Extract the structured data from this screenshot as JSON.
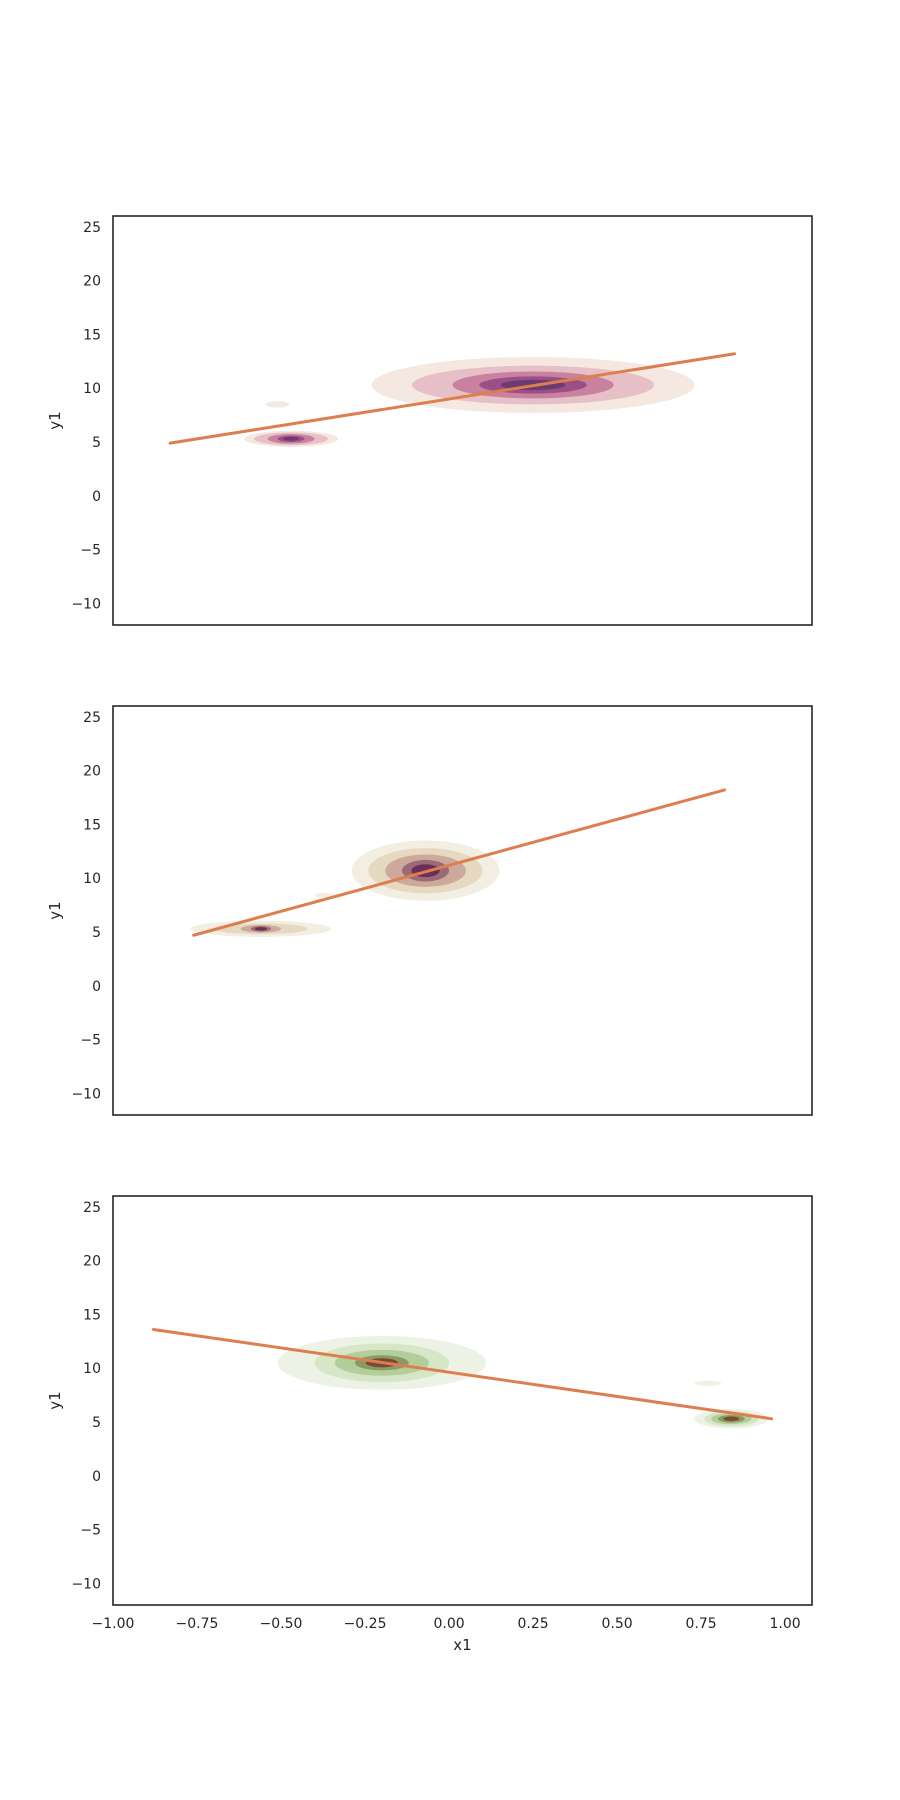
{
  "chart_data": [
    {
      "type": "line",
      "subtype": "kde_contour_with_regression",
      "title": "",
      "xlabel": "",
      "ylabel": "y1",
      "xlim": [
        -1.0,
        1.08
      ],
      "ylim": [
        -12,
        26
      ],
      "x_ticks_visible": false,
      "yticks": [
        25,
        20,
        15,
        10,
        5,
        0,
        -5,
        -10
      ],
      "ytick_labels": [
        "25",
        "20",
        "15",
        "10",
        "5",
        "0",
        "−5",
        "−10"
      ],
      "grid": false,
      "regression_line": {
        "x": [
          -0.83,
          0.85
        ],
        "y": [
          4.9,
          13.2
        ],
        "color": "#dd7e4e"
      },
      "kde_palette": [
        "#f4e8e0",
        "#e7c0c7",
        "#c8829f",
        "#9c4f86",
        "#6b3a72"
      ],
      "kde_clusters": [
        {
          "cx": 0.25,
          "cy": 10.3,
          "rx": [
            0.48,
            0.36,
            0.24,
            0.16
          ],
          "ry": [
            2.6,
            1.8,
            1.25,
            0.8
          ]
        },
        {
          "cx": -0.47,
          "cy": 5.3,
          "rx": [
            0.14,
            0.11,
            0.07,
            0.04
          ],
          "ry": [
            0.75,
            0.6,
            0.45,
            0.3
          ]
        },
        {
          "cx": -0.51,
          "cy": 8.5,
          "rx": [
            0.035
          ],
          "ry": [
            0.3
          ]
        }
      ]
    },
    {
      "type": "line",
      "subtype": "kde_contour_with_regression",
      "title": "",
      "xlabel": "",
      "ylabel": "y1",
      "xlim": [
        -1.0,
        1.08
      ],
      "ylim": [
        -12,
        26
      ],
      "x_ticks_visible": false,
      "yticks": [
        25,
        20,
        15,
        10,
        5,
        0,
        -5,
        -10
      ],
      "ytick_labels": [
        "25",
        "20",
        "15",
        "10",
        "5",
        "0",
        "−5",
        "−10"
      ],
      "grid": false,
      "regression_line": {
        "x": [
          -0.76,
          0.82
        ],
        "y": [
          4.7,
          18.2
        ],
        "color": "#dd7e4e"
      },
      "kde_palette": [
        "#f2efe2",
        "#e5d9c2",
        "#cca99a",
        "#9b6a79",
        "#6b2f57"
      ],
      "kde_clusters": [
        {
          "cx": -0.07,
          "cy": 10.7,
          "rx": [
            0.22,
            0.17,
            0.12,
            0.07
          ],
          "ry": [
            2.8,
            2.1,
            1.5,
            1.0
          ]
        },
        {
          "cx": -0.56,
          "cy": 5.3,
          "rx": [
            0.21,
            0.14,
            0.06,
            0.03
          ],
          "ry": [
            0.75,
            0.5,
            0.35,
            0.25
          ]
        },
        {
          "cx": -0.37,
          "cy": 8.4,
          "rx": [
            0.03
          ],
          "ry": [
            0.25
          ]
        }
      ]
    },
    {
      "type": "line",
      "subtype": "kde_contour_with_regression",
      "title": "",
      "xlabel": "x1",
      "ylabel": "y1",
      "xlim": [
        -1.0,
        1.08
      ],
      "ylim": [
        -12,
        26
      ],
      "x_ticks_visible": true,
      "xticks": [
        -1.0,
        -0.75,
        -0.5,
        -0.25,
        0.0,
        0.25,
        0.5,
        0.75,
        1.0
      ],
      "xtick_labels": [
        "−1.00",
        "−0.75",
        "−0.50",
        "−0.25",
        "0.00",
        "0.25",
        "0.50",
        "0.75",
        "1.00"
      ],
      "yticks": [
        25,
        20,
        15,
        10,
        5,
        0,
        -5,
        -10
      ],
      "ytick_labels": [
        "25",
        "20",
        "15",
        "10",
        "5",
        "0",
        "−5",
        "−10"
      ],
      "grid": false,
      "regression_line": {
        "x": [
          -0.88,
          0.96
        ],
        "y": [
          13.6,
          5.3
        ],
        "color": "#dd7e4e"
      },
      "kde_palette": [
        "#edf3e4",
        "#d7e6c6",
        "#b2ce9b",
        "#8a9a64",
        "#7a4b32"
      ],
      "kde_clusters": [
        {
          "cx": -0.2,
          "cy": 10.5,
          "rx": [
            0.31,
            0.2,
            0.14,
            0.08
          ],
          "ry": [
            2.5,
            1.8,
            1.2,
            0.7
          ]
        },
        {
          "cx": 0.84,
          "cy": 5.3,
          "rx": [
            0.11,
            0.08,
            0.06,
            0.04
          ],
          "ry": [
            0.9,
            0.7,
            0.5,
            0.35
          ]
        },
        {
          "cx": 0.77,
          "cy": 8.6,
          "rx": [
            0.04
          ],
          "ry": [
            0.25
          ]
        }
      ]
    }
  ]
}
